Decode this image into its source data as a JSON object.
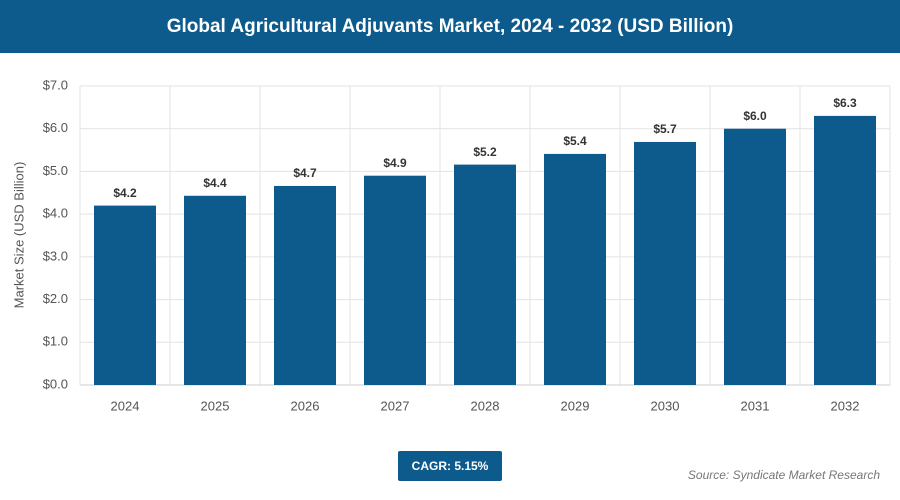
{
  "chart_data": {
    "type": "bar",
    "title": "Global Agricultural Adjuvants Market, 2024 - 2032 (USD Billion)",
    "y_label": "Market Size (USD Billion)",
    "categories": [
      "2024",
      "2025",
      "2026",
      "2027",
      "2028",
      "2029",
      "2030",
      "2031",
      "2032"
    ],
    "values": [
      4.2,
      4.43,
      4.66,
      4.9,
      5.16,
      5.41,
      5.69,
      6.0,
      6.3
    ],
    "value_labels": [
      "$4.2",
      "$4.4",
      "$4.7",
      "$4.9",
      "$5.2",
      "$5.4",
      "$5.7",
      "$6.0",
      "$6.3"
    ],
    "color": "#0d5a8c",
    "ylim": [
      0,
      7
    ],
    "yticks": [
      {
        "value": 0,
        "label": "$0.0"
      },
      {
        "value": 1,
        "label": "$1.0"
      },
      {
        "value": 2,
        "label": "$2.0"
      },
      {
        "value": 3,
        "label": "$3.0"
      },
      {
        "value": 4,
        "label": "$4.0"
      },
      {
        "value": 5,
        "label": "$5.0"
      },
      {
        "value": 6,
        "label": "$6.0"
      },
      {
        "value": 7,
        "label": "$7.0"
      }
    ],
    "grid": true,
    "cagr": "CAGR: 5.15%",
    "source": "Source: Syndicate Market Research"
  }
}
